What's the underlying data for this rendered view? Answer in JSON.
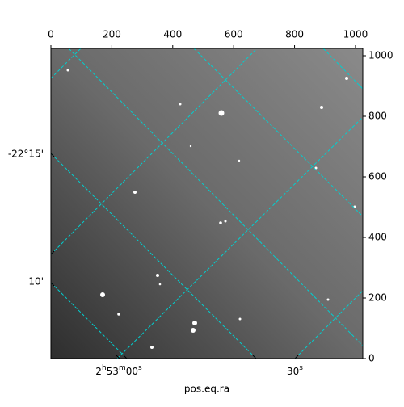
{
  "chart_data": {
    "type": "image",
    "xlabel": "pos.eq.ra",
    "xlim": [
      0,
      1024
    ],
    "xticks": [
      0,
      200,
      400,
      600,
      800,
      1000
    ],
    "ylim": [
      0,
      1024
    ],
    "yticks": [
      0,
      200,
      400,
      600,
      800,
      1000
    ],
    "ra_tick_labels": [
      "2h53m00s",
      "30s"
    ],
    "dec_tick_labels": [
      "-22°15'",
      "10'"
    ],
    "grid_color": "#00d0d0"
  }
}
